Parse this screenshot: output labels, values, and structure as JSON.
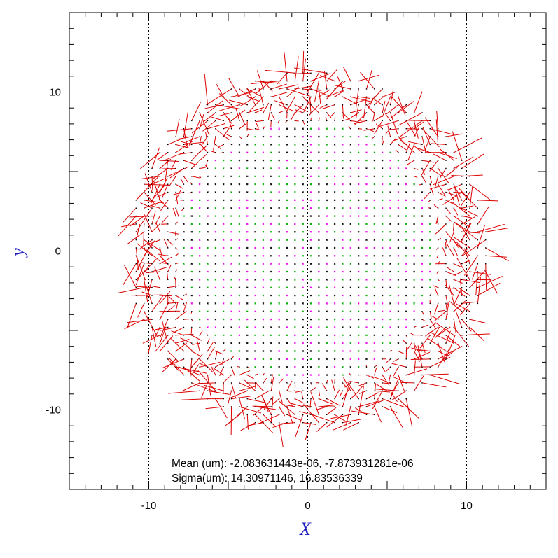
{
  "chart_data": {
    "type": "scatter",
    "subtype": "vector-field (quiver)",
    "xlabel": "X",
    "ylabel": "y",
    "xlim": [
      -15,
      15
    ],
    "ylim": [
      -15,
      15
    ],
    "x_ticks": [
      -10,
      0,
      10
    ],
    "y_ticks": [
      -10,
      0,
      10
    ],
    "x_tick_labels": [
      "-10",
      "0",
      "10"
    ],
    "y_tick_labels": [
      "-10",
      "0",
      "10"
    ],
    "grid": true,
    "grid_style": "dotted",
    "grid_spacing": 0.5,
    "field_region": "disk",
    "field_radius": 11.3,
    "colors": {
      "vectors": "#dd0000",
      "grid_markers": [
        "#00aa00",
        "#ee00ee",
        "#000000"
      ],
      "axis_titles": "#1f1fbf",
      "gridlines": "#000000"
    },
    "stats": {
      "mean_line": "Mean (um): -2.083631443e-06, -7.873931281e-06",
      "sigma_line": "Sigma(um): 14.30971146, 16.83536339"
    }
  }
}
